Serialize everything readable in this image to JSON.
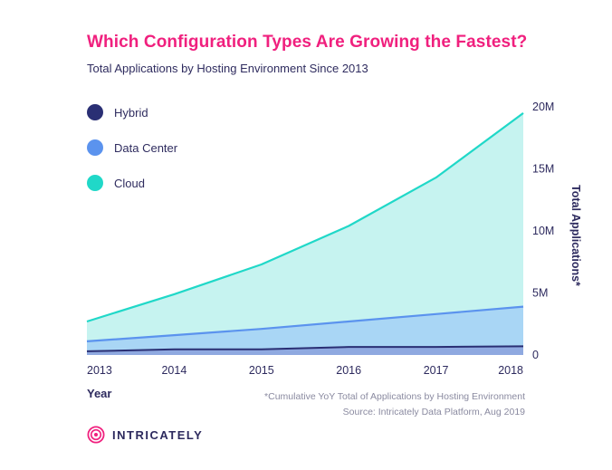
{
  "header": {
    "title": "Which Configuration Types Are Growing the Fastest?",
    "subtitle": "Total Applications by Hosting Environment Since 2013"
  },
  "colors": {
    "title": "#f0207e",
    "hybrid": "#2a2f74",
    "data_center": "#5b93ee",
    "cloud": "#20d8c8",
    "cloud_fill": "#c6f3f0",
    "data_center_fill": "#a9d6f5",
    "hybrid_fill": "#8fa9e0"
  },
  "chart_data": {
    "type": "area",
    "title": "Which Configuration Types Are Growing the Fastest?",
    "subtitle": "Total Applications by Hosting Environment Since 2013",
    "x": [
      "2013",
      "2014",
      "2015",
      "2016",
      "2017",
      "2018"
    ],
    "xlabel": "Year",
    "ylabel": "Total Applications*",
    "yticks": [
      "0",
      "5M",
      "10M",
      "15M",
      "20M"
    ],
    "ylim": [
      0,
      20000000
    ],
    "y_axis_side": "right",
    "grid": false,
    "legend_position": "top-left",
    "series": [
      {
        "name": "Hybrid",
        "values": [
          300000,
          450000,
          450000,
          650000,
          650000,
          700000
        ]
      },
      {
        "name": "Data Center",
        "values": [
          1100000,
          1600000,
          2100000,
          2700000,
          3300000,
          3900000
        ]
      },
      {
        "name": "Cloud",
        "values": [
          2700000,
          4900000,
          7300000,
          10400000,
          14300000,
          19500000
        ]
      }
    ]
  },
  "legend": {
    "items": [
      {
        "label": "Hybrid",
        "color": "#2a2f74"
      },
      {
        "label": "Data Center",
        "color": "#5b93ee"
      },
      {
        "label": "Cloud",
        "color": "#20d8c8"
      }
    ]
  },
  "axes": {
    "x_title": "Year",
    "y_title": "Total Applications*"
  },
  "footnote": {
    "line1": "*Cumulative YoY Total of Applications by Hosting Environment",
    "line2": "Source: Intricately Data Platform, Aug 2019"
  },
  "brand": {
    "name": "INTRICATELY",
    "icon": "intricately-logo-icon"
  }
}
